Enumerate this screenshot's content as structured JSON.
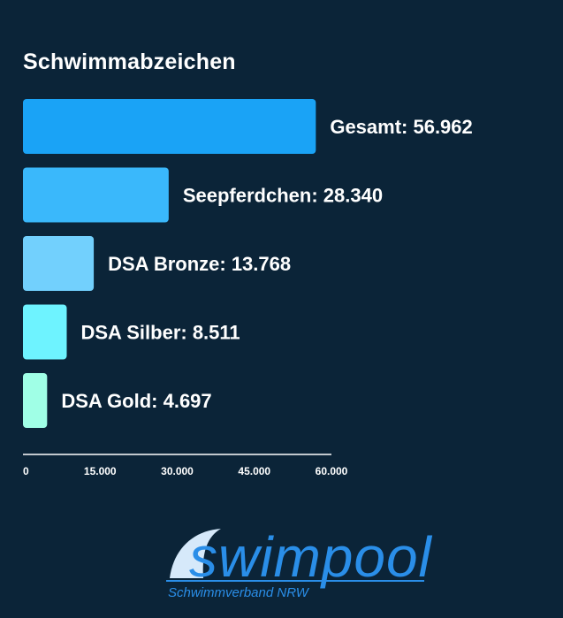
{
  "chart_data": {
    "type": "bar",
    "orientation": "horizontal",
    "title": "Schwimmabzeichen",
    "categories": [
      "Gesamt",
      "Seepferdchen",
      "DSA Bronze",
      "DSA Silber",
      "DSA Gold"
    ],
    "values": [
      56962,
      28340,
      13768,
      8511,
      4697
    ],
    "labels": [
      "Gesamt: 56.962",
      "Seepferdchen: 28.340",
      "DSA Bronze: 13.768",
      "DSA Silber: 8.511",
      "DSA Gold: 4.697"
    ],
    "colors": [
      "#1aa3f6",
      "#3ab8fb",
      "#72d0fd",
      "#6ef3ff",
      "#a0ffe6"
    ],
    "xlim": [
      0,
      60000
    ],
    "xticks": [
      0,
      15000,
      30000,
      45000,
      60000
    ],
    "xtick_labels": [
      "0",
      "15.000",
      "30.000",
      "45.000",
      "60.000"
    ],
    "grid": false,
    "legend": "none"
  },
  "logo": {
    "word": "swimpool",
    "subtitle": "Schwimmverband NRW",
    "color": "#2a8ee8",
    "wave_color": "#d6e9fa"
  }
}
